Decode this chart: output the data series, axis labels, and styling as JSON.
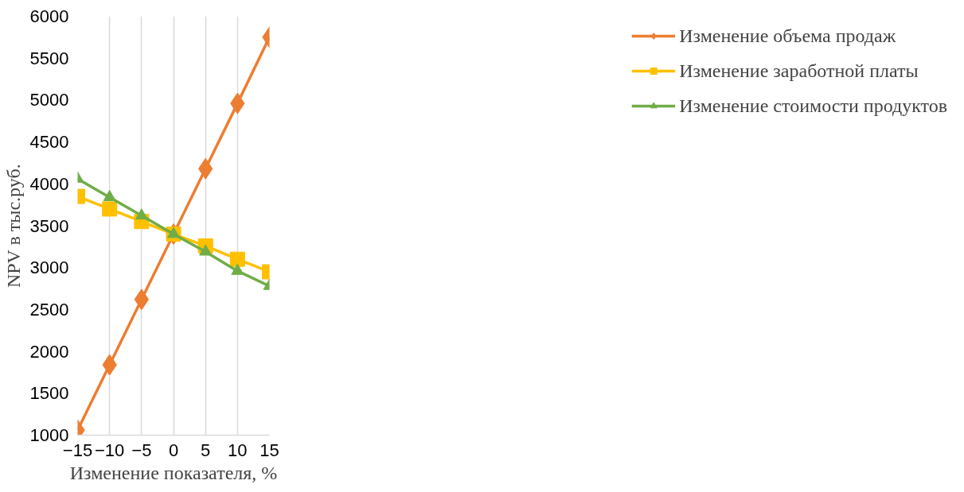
{
  "chart_data": {
    "type": "line",
    "xlabel": "Изменение показателя, %",
    "ylabel": "NPV в тыс.руб.",
    "x": [
      -15,
      -10,
      -5,
      0,
      5,
      10,
      15
    ],
    "xlim": [
      -15,
      15
    ],
    "xticks": [
      -15,
      -10,
      -5,
      0,
      5,
      10,
      15
    ],
    "ylim": [
      1000,
      6000
    ],
    "yticks": [
      1000,
      1500,
      2000,
      2500,
      3000,
      3500,
      4000,
      4500,
      5000,
      5500,
      6000
    ],
    "grid": "x",
    "legend": "right",
    "line_style": "solid",
    "series": [
      {
        "name": "Изменение объема продаж",
        "color": "#ed7d31",
        "marker": "diamond",
        "values": [
          1060,
          1840,
          2620,
          3400,
          4180,
          4960,
          5750
        ]
      },
      {
        "name": "Изменение заработной платы",
        "color": "#ffc000",
        "marker": "square",
        "values": [
          3850,
          3700,
          3550,
          3400,
          3260,
          3100,
          2950
        ]
      },
      {
        "name": "Изменение стоимости продуктов",
        "color": "#70ad47",
        "marker": "triangle",
        "values": [
          4060,
          3840,
          3620,
          3400,
          3190,
          2960,
          2780
        ]
      }
    ]
  }
}
